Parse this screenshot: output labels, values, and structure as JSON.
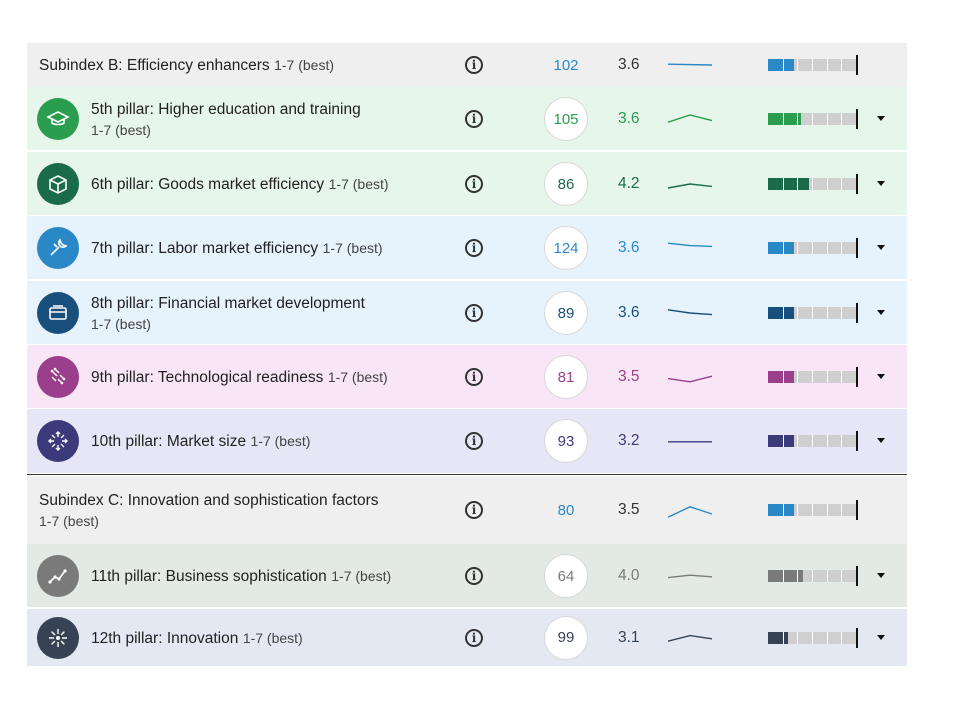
{
  "scale_label": "1-7",
  "best_label": "(best)",
  "info_glyph": "i",
  "rows": [
    {
      "kind": "subindex",
      "name": "Subindex B: Efficiency enhancers",
      "rank": "102",
      "score": "3.6",
      "bar_fraction": 0.3,
      "color": "#2a88c7",
      "row_bg": "#efefef",
      "spark": [
        0.45,
        0.5
      ],
      "icon": null
    },
    {
      "kind": "pillar",
      "name": "5th pillar: Higher education and training",
      "rank": "105",
      "score": "3.6",
      "bar_fraction": 0.37,
      "color": "#2a9d4e",
      "row_bg": "#e6f6ea",
      "spark": [
        0.7,
        0.25,
        0.6
      ],
      "icon": "graduation-cap-icon"
    },
    {
      "kind": "pillar",
      "name": "6th pillar: Goods market efficiency",
      "rank": "86",
      "score": "4.2",
      "bar_fraction": 0.47,
      "color": "#1a6b4a",
      "row_bg": "#e6f6ea",
      "spark": [
        0.75,
        0.5,
        0.65
      ],
      "icon": "box-icon"
    },
    {
      "kind": "pillar",
      "name": "7th pillar: Labor market efficiency",
      "rank": "124",
      "score": "3.6",
      "bar_fraction": 0.3,
      "color": "#2a88c7",
      "row_bg": "#e7f3fc",
      "spark": [
        0.2,
        0.35,
        0.4
      ],
      "icon": "wrench-icon"
    },
    {
      "kind": "pillar",
      "name": "8th pillar: Financial market development",
      "rank": "89",
      "score": "3.6",
      "bar_fraction": 0.3,
      "color": "#184f7c",
      "row_bg": "#e7f3fc",
      "spark": [
        0.3,
        0.5,
        0.6
      ],
      "icon": "card-icon"
    },
    {
      "kind": "pillar",
      "name": "9th pillar: Technological readiness",
      "rank": "81",
      "score": "3.5",
      "bar_fraction": 0.3,
      "color": "#9b3f8c",
      "row_bg": "#f8e6f6",
      "spark": [
        0.6,
        0.8,
        0.45
      ],
      "icon": "circuit-icon"
    },
    {
      "kind": "pillar",
      "name": "10th pillar: Market size",
      "rank": "93",
      "score": "3.2",
      "bar_fraction": 0.3,
      "color": "#3b3a7a",
      "row_bg": "#e7e6f6",
      "spark": [
        0.55,
        0.55
      ],
      "icon": "arrows-icon"
    },
    {
      "kind": "subindex",
      "name": "Subindex C: Innovation and sophistication factors",
      "rank": "80",
      "score": "3.5",
      "bar_fraction": 0.3,
      "color": "#2a88c7",
      "row_bg": "#efefef",
      "spark": [
        0.95,
        0.3,
        0.75
      ],
      "icon": null
    },
    {
      "kind": "pillar",
      "name": "11th pillar: Business sophistication",
      "rank": "64",
      "score": "4.0",
      "bar_fraction": 0.4,
      "color": "#7a7a7a",
      "row_bg": "#e3eae6",
      "spark": [
        0.6,
        0.45,
        0.55
      ],
      "icon": "trend-icon"
    },
    {
      "kind": "pillar",
      "name": "12th pillar: Innovation",
      "rank": "99",
      "score": "3.1",
      "bar_fraction": 0.23,
      "color": "#374355",
      "row_bg": "#e3e8f2",
      "spark": [
        0.7,
        0.35,
        0.55
      ],
      "icon": "burst-icon"
    }
  ]
}
